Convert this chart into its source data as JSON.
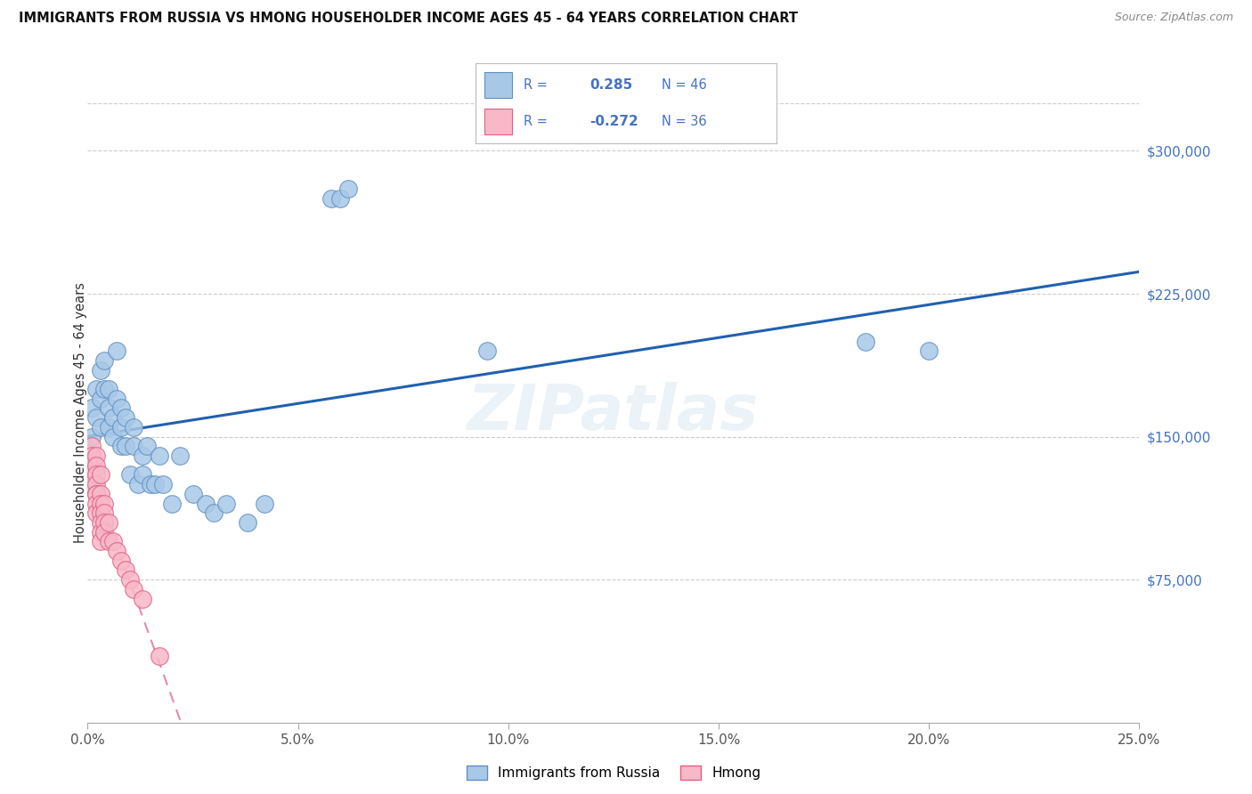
{
  "title": "IMMIGRANTS FROM RUSSIA VS HMONG HOUSEHOLDER INCOME AGES 45 - 64 YEARS CORRELATION CHART",
  "source": "Source: ZipAtlas.com",
  "ylabel": "Householder Income Ages 45 - 64 years",
  "ytick_labels": [
    "$75,000",
    "$150,000",
    "$225,000",
    "$300,000"
  ],
  "ytick_values": [
    75000,
    150000,
    225000,
    300000
  ],
  "russia_color": "#a8c8e8",
  "russia_edge": "#6090c0",
  "hmong_color": "#f8b8c8",
  "hmong_edge": "#e06080",
  "russia_line_color": "#2060b0",
  "hmong_line_color": "#d04070",
  "hmong_line_dash": [
    6,
    4
  ],
  "watermark": "ZIPatlas",
  "russia_x": [
    0.001,
    0.001,
    0.002,
    0.002,
    0.003,
    0.003,
    0.003,
    0.004,
    0.004,
    0.005,
    0.005,
    0.005,
    0.006,
    0.006,
    0.007,
    0.007,
    0.008,
    0.008,
    0.008,
    0.009,
    0.009,
    0.01,
    0.011,
    0.011,
    0.012,
    0.013,
    0.013,
    0.014,
    0.015,
    0.016,
    0.017,
    0.018,
    0.02,
    0.022,
    0.025,
    0.028,
    0.03,
    0.033,
    0.038,
    0.042,
    0.058,
    0.06,
    0.062,
    0.095,
    0.185,
    0.2
  ],
  "russia_y": [
    165000,
    150000,
    175000,
    160000,
    170000,
    155000,
    185000,
    190000,
    175000,
    165000,
    175000,
    155000,
    160000,
    150000,
    195000,
    170000,
    155000,
    145000,
    165000,
    145000,
    160000,
    130000,
    155000,
    145000,
    125000,
    140000,
    130000,
    145000,
    125000,
    125000,
    140000,
    125000,
    115000,
    140000,
    120000,
    115000,
    110000,
    115000,
    105000,
    115000,
    275000,
    275000,
    280000,
    195000,
    200000,
    195000
  ],
  "hmong_x": [
    0.0005,
    0.0005,
    0.001,
    0.001,
    0.001,
    0.001,
    0.001,
    0.002,
    0.002,
    0.002,
    0.002,
    0.002,
    0.002,
    0.002,
    0.002,
    0.003,
    0.003,
    0.003,
    0.003,
    0.003,
    0.003,
    0.003,
    0.004,
    0.004,
    0.004,
    0.004,
    0.005,
    0.005,
    0.006,
    0.007,
    0.008,
    0.009,
    0.01,
    0.011,
    0.013,
    0.017
  ],
  "hmong_y": [
    135000,
    140000,
    145000,
    140000,
    135000,
    130000,
    125000,
    140000,
    135000,
    130000,
    125000,
    120000,
    120000,
    115000,
    110000,
    130000,
    120000,
    115000,
    110000,
    105000,
    100000,
    95000,
    115000,
    110000,
    105000,
    100000,
    105000,
    95000,
    95000,
    90000,
    85000,
    80000,
    75000,
    70000,
    65000,
    35000
  ],
  "xmin": 0.0,
  "xmax": 0.25,
  "ymin": 0,
  "ymax": 325000
}
